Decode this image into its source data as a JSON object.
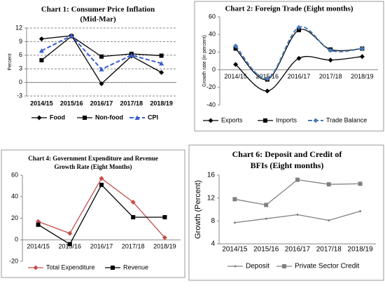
{
  "chart_data": [
    {
      "type": "line",
      "title": [
        "Chart 1: Consumer Price Inflation",
        "(Mid-Mar)"
      ],
      "ylabel": "Percent",
      "categories": [
        "2014/15",
        "2015/16",
        "2016/17",
        "2017/18",
        "2018/19"
      ],
      "ylim": [
        -3,
        12
      ],
      "yticks": [
        -3,
        0,
        3,
        6,
        9,
        12
      ],
      "grid": true,
      "smooth": false,
      "series": [
        {
          "name": "Food",
          "color": "#000000",
          "marker": "diamond",
          "dash": false,
          "values": [
            9.6,
            10.3,
            -0.3,
            5.8,
            2.2
          ]
        },
        {
          "name": "Non-food",
          "color": "#000000",
          "marker": "square",
          "dash": false,
          "values": [
            4.9,
            10.2,
            5.7,
            6.3,
            5.9
          ]
        },
        {
          "name": "CPI",
          "color": "#3a5fcd",
          "marker": "triangle",
          "dash": true,
          "values": [
            7.0,
            10.3,
            2.9,
            6.0,
            4.2
          ]
        }
      ]
    },
    {
      "type": "line",
      "title": [
        "Chart 2: Foreign Trade (Eight months)"
      ],
      "ylabel": "Growth rate (in percent)",
      "categories": [
        "2014/15",
        "2015/16",
        "2016/17",
        "2017/18",
        "2018/19"
      ],
      "ylim": [
        -40,
        60
      ],
      "yticks": [
        -40,
        -20,
        0,
        20,
        40,
        60
      ],
      "grid": false,
      "smooth": true,
      "series": [
        {
          "name": "Exports",
          "color": "#000000",
          "marker": "diamond",
          "dash": false,
          "values": [
            6,
            -24,
            13,
            11,
            15
          ]
        },
        {
          "name": "Imports",
          "color": "#000000",
          "marker": "square",
          "dash": false,
          "values": [
            24,
            -11,
            45,
            23,
            24
          ]
        },
        {
          "name": "Trade Balance",
          "color": "#4a7ab5",
          "marker": "diamond",
          "dash": true,
          "values": [
            27,
            -10,
            48,
            22,
            24
          ]
        }
      ]
    },
    {
      "type": "line",
      "title": [
        "Chart 4: Government Expenditure and Revenue",
        "Growth Rate (Eight Months)"
      ],
      "categories": [
        "2014/15",
        "2015/16",
        "2016/17",
        "2017/18",
        "2018/19"
      ],
      "ylim": [
        -20,
        60
      ],
      "yticks": [
        -20,
        0,
        20,
        40,
        60
      ],
      "grid": false,
      "smooth": false,
      "series": [
        {
          "name": "Total Expenditure",
          "color": "#c0504d",
          "marker": "diamond",
          "dash": false,
          "values": [
            17,
            6,
            57,
            35,
            2
          ]
        },
        {
          "name": "Revenue",
          "color": "#000000",
          "marker": "square",
          "dash": false,
          "values": [
            14,
            -4,
            51,
            21,
            21
          ]
        }
      ]
    },
    {
      "type": "line",
      "title": [
        "Chart 6:  Deposit and Credit of",
        "BFIs (Eight months)"
      ],
      "ylabel": "Growth (Percent)",
      "categories": [
        "2014/15",
        "2015/16",
        "2016/17",
        "2017/18",
        "2018/19"
      ],
      "ylim": [
        4,
        16
      ],
      "yticks": [
        4,
        8,
        12,
        16
      ],
      "grid": false,
      "smooth": false,
      "series": [
        {
          "name": "Deposit",
          "color": "#808080",
          "marker": "dot",
          "dash": false,
          "values": [
            7.7,
            8.4,
            9.1,
            8.1,
            9.7
          ]
        },
        {
          "name": "Private Sector Credit",
          "color": "#808080",
          "marker": "square",
          "dash": false,
          "values": [
            11.8,
            10.8,
            15.2,
            14.4,
            14.5
          ]
        }
      ]
    }
  ]
}
